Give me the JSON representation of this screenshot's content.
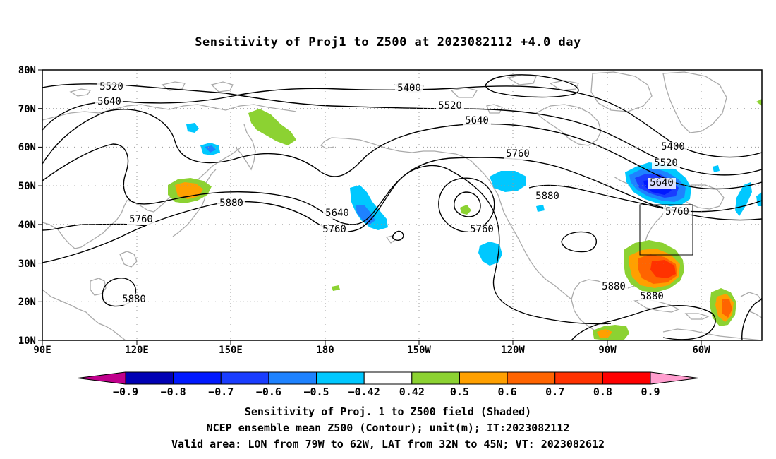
{
  "title": "Sensitivity of Proj1 to Z500 at 2023082112 +4.0 day",
  "lat_labels": [
    "80N",
    "70N",
    "60N",
    "50N",
    "40N",
    "30N",
    "20N",
    "10N"
  ],
  "lon_labels": [
    "90E",
    "120E",
    "150E",
    "180",
    "150W",
    "120W",
    "90W",
    "60W"
  ],
  "contour_labels": [
    "5520",
    "5640",
    "5400",
    "5520",
    "5640",
    "5760",
    "5400",
    "5520",
    "5640",
    "5760",
    "5880",
    "5880",
    "5640",
    "5760",
    "5760",
    "5760",
    "5880",
    "5880",
    "5880"
  ],
  "colorbar": {
    "ticks": [
      "-0.9",
      "-0.8",
      "-0.7",
      "-0.6",
      "-0.5",
      "-0.42",
      "0.42",
      "0.5",
      "0.6",
      "0.7",
      "0.8",
      "0.9"
    ],
    "colors": [
      "#c0008c",
      "#0000b4",
      "#0019ff",
      "#1a3dff",
      "#1e82ff",
      "#00c8ff",
      "#ffffff",
      "#8cd232",
      "#ffa000",
      "#ff6400",
      "#ff3200",
      "#ff0000",
      "#ff9ecf"
    ]
  },
  "captions": [
    "Sensitivity of Proj. 1 to Z500 field (Shaded)",
    "NCEP ensemble mean Z500 (Contour); unit(m); IT:2023082112",
    "Valid area: LON from 79W to 62W, LAT from 32N to 45N; VT: 2023082612"
  ],
  "colors": {
    "contour": "#000000",
    "coastline": "#aaaaaa",
    "grid": "#999999"
  }
}
